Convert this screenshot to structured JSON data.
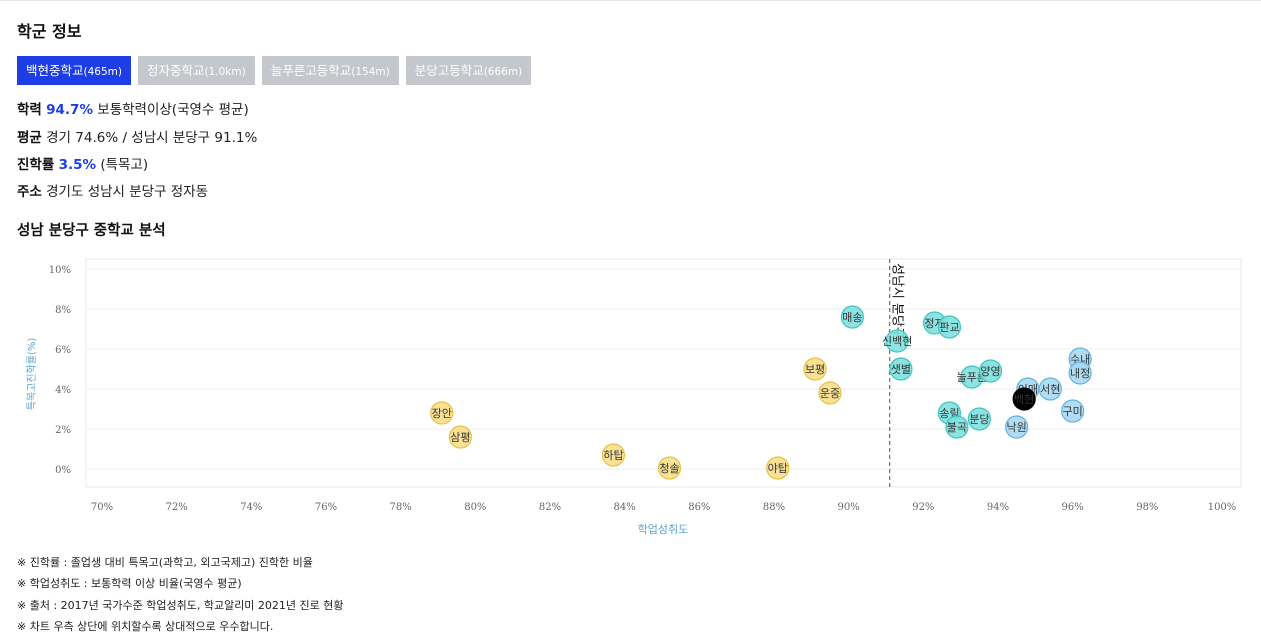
{
  "section1_title": "학군 정보",
  "tabs": [
    {
      "name": "백현중학교",
      "dist": "(465m)",
      "active": true
    },
    {
      "name": "정자중학교",
      "dist": "(1.0km)",
      "active": false
    },
    {
      "name": "늘푸른고등학교",
      "dist": "(154m)",
      "active": false
    },
    {
      "name": "분당고등학교",
      "dist": "(666m)",
      "active": false
    }
  ],
  "info": {
    "achievement_label": "학력",
    "achievement_value": "94.7%",
    "achievement_desc": "보통학력이상(국영수 평균)",
    "average_label": "평균",
    "average_desc": "경기 74.6% / 성남시 분당구 91.1%",
    "advance_label": "진학률",
    "advance_value": "3.5%",
    "advance_desc": "(특목고)",
    "address_label": "주소",
    "address_desc": "경기도 성남시 분당구 정자동"
  },
  "section2_title": "성남 분당구 중학교 분석",
  "chart_data": {
    "type": "scatter",
    "xlabel": "학업성취도",
    "ylabel": "특목고진학률(%)",
    "xlim": [
      70,
      100
    ],
    "ylim": [
      0,
      10
    ],
    "x_ticks": [
      "70%",
      "72%",
      "74%",
      "76%",
      "78%",
      "80%",
      "82%",
      "84%",
      "86%",
      "88%",
      "90%",
      "92%",
      "94%",
      "96%",
      "98%",
      "100%"
    ],
    "y_ticks": [
      "0%",
      "2%",
      "4%",
      "6%",
      "8%",
      "10%"
    ],
    "reference_line": {
      "x": 91.1,
      "label": "성남시 분당구"
    },
    "colors": {
      "yellow": "#f8df8a",
      "yellow_stroke": "#e8c043",
      "cyan": "#7fe0de",
      "cyan_stroke": "#3fc6c3",
      "blue": "#a8d8f0",
      "blue_stroke": "#5fb5e4",
      "selected": "#000000"
    },
    "points": [
      {
        "label": "장안",
        "x": 79.1,
        "y": 2.8,
        "group": "yellow"
      },
      {
        "label": "삼평",
        "x": 79.6,
        "y": 1.6,
        "group": "yellow"
      },
      {
        "label": "하탑",
        "x": 83.7,
        "y": 0.7,
        "group": "yellow"
      },
      {
        "label": "청솔",
        "x": 85.2,
        "y": 0.05,
        "group": "yellow"
      },
      {
        "label": "야탑",
        "x": 88.1,
        "y": 0.05,
        "group": "yellow"
      },
      {
        "label": "보평",
        "x": 89.1,
        "y": 5.0,
        "group": "yellow"
      },
      {
        "label": "운중",
        "x": 89.5,
        "y": 3.8,
        "group": "yellow"
      },
      {
        "label": "매송",
        "x": 90.1,
        "y": 7.6,
        "group": "cyan"
      },
      {
        "label": "신백현",
        "x": 91.3,
        "y": 6.4,
        "group": "cyan"
      },
      {
        "label": "샛별",
        "x": 91.4,
        "y": 5.0,
        "group": "cyan"
      },
      {
        "label": "정자",
        "x": 92.3,
        "y": 7.3,
        "group": "cyan"
      },
      {
        "label": "판교",
        "x": 92.7,
        "y": 7.1,
        "group": "cyan"
      },
      {
        "label": "늘푸른",
        "x": 93.3,
        "y": 4.6,
        "group": "cyan"
      },
      {
        "label": "양영",
        "x": 93.8,
        "y": 4.9,
        "group": "cyan"
      },
      {
        "label": "송림",
        "x": 92.7,
        "y": 2.8,
        "group": "cyan"
      },
      {
        "label": "불곡",
        "x": 92.9,
        "y": 2.1,
        "group": "cyan"
      },
      {
        "label": "분당",
        "x": 93.5,
        "y": 2.5,
        "group": "cyan"
      },
      {
        "label": "이매",
        "x": 94.8,
        "y": 4.0,
        "group": "blue"
      },
      {
        "label": "서현",
        "x": 95.4,
        "y": 4.0,
        "group": "blue"
      },
      {
        "label": "낙원",
        "x": 94.5,
        "y": 2.1,
        "group": "blue"
      },
      {
        "label": "구미",
        "x": 96.0,
        "y": 2.9,
        "group": "blue"
      },
      {
        "label": "수내",
        "x": 96.2,
        "y": 5.5,
        "group": "blue"
      },
      {
        "label": "내정",
        "x": 96.2,
        "y": 4.8,
        "group": "blue"
      },
      {
        "label": "백현",
        "x": 94.7,
        "y": 3.5,
        "group": "selected"
      }
    ]
  },
  "notes": [
    "※ 진학률 : 졸업생 대비 특목고(과학고, 외고국제고) 진학한 비율",
    "※ 학업성취도 : 보통학력 이상 비율(국영수 평균)",
    "※ 출처 : 2017년 국가수준 학업성취도, 학교알리미 2021년 진로 현황",
    "※ 차트 우측 상단에 위치할수록 상대적으로 우수합니다."
  ]
}
